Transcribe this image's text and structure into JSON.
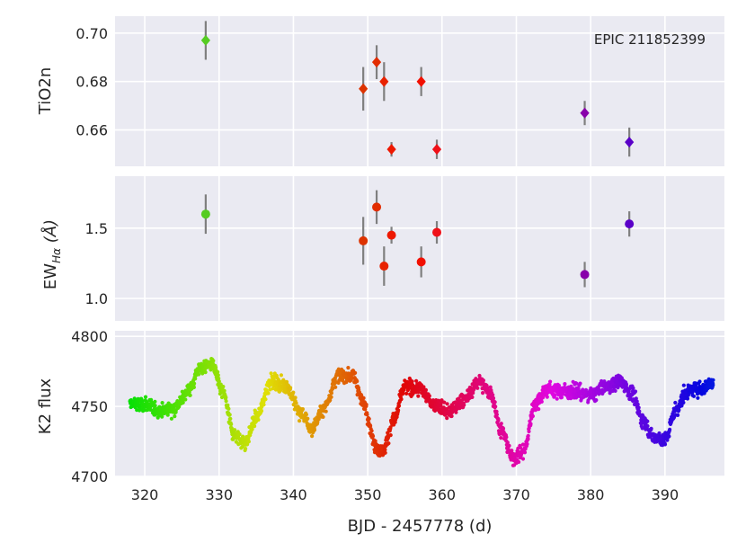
{
  "chart_data": [
    {
      "type": "scatter",
      "ylabel": "TiO2n",
      "annotation": "EPIC 211852399",
      "xlim": [
        316,
        398
      ],
      "ylim": [
        0.645,
        0.707
      ],
      "yticks": [
        "0.66",
        "0.68",
        "0.70"
      ],
      "marker": "diamond",
      "points": [
        {
          "x": 328.2,
          "y": 0.697,
          "err": 0.008,
          "color": "#55cc22"
        },
        {
          "x": 349.4,
          "y": 0.677,
          "err": 0.009,
          "color": "#dd3300"
        },
        {
          "x": 351.2,
          "y": 0.688,
          "err": 0.007,
          "color": "#e22c00"
        },
        {
          "x": 352.2,
          "y": 0.68,
          "err": 0.008,
          "color": "#e82200"
        },
        {
          "x": 353.2,
          "y": 0.652,
          "err": 0.003,
          "color": "#ee1800"
        },
        {
          "x": 357.2,
          "y": 0.68,
          "err": 0.006,
          "color": "#f21000"
        },
        {
          "x": 359.3,
          "y": 0.652,
          "err": 0.004,
          "color": "#f01018"
        },
        {
          "x": 379.2,
          "y": 0.667,
          "err": 0.005,
          "color": "#8800aa"
        },
        {
          "x": 385.2,
          "y": 0.655,
          "err": 0.006,
          "color": "#5a00c8"
        }
      ]
    },
    {
      "type": "scatter",
      "ylabel": "EW",
      "ylabel_sub": "Hα",
      "ylabel_unit": " (Å)",
      "xlim": [
        316,
        398
      ],
      "ylim": [
        0.84,
        1.87
      ],
      "yticks": [
        "1.0",
        "1.5"
      ],
      "marker": "circle",
      "points": [
        {
          "x": 328.2,
          "y": 1.6,
          "err": 0.14,
          "color": "#55cc22"
        },
        {
          "x": 349.4,
          "y": 1.41,
          "err": 0.17,
          "color": "#dd3300"
        },
        {
          "x": 351.2,
          "y": 1.65,
          "err": 0.12,
          "color": "#e22c00"
        },
        {
          "x": 352.2,
          "y": 1.23,
          "err": 0.14,
          "color": "#e82200"
        },
        {
          "x": 353.2,
          "y": 1.45,
          "err": 0.06,
          "color": "#ee1800"
        },
        {
          "x": 357.2,
          "y": 1.26,
          "err": 0.11,
          "color": "#f21000"
        },
        {
          "x": 359.3,
          "y": 1.47,
          "err": 0.08,
          "color": "#f01018"
        },
        {
          "x": 379.2,
          "y": 1.17,
          "err": 0.09,
          "color": "#8800aa"
        },
        {
          "x": 385.2,
          "y": 1.53,
          "err": 0.09,
          "color": "#5a00c8"
        }
      ]
    },
    {
      "type": "scatter",
      "ylabel": "K2 flux",
      "xlabel": "BJD - 2457778 (d)",
      "xlim": [
        316,
        398
      ],
      "ylim": [
        4700,
        4804
      ],
      "yticks": [
        "4700",
        "4750",
        "4800"
      ],
      "xticks": [
        "320",
        "330",
        "340",
        "350",
        "360",
        "370",
        "380",
        "390"
      ],
      "marker": "dot",
      "x_range": [
        318,
        396.5
      ],
      "colormap": "hue: green (318) → red (~355) → purple/blue (396)",
      "light_curve_nodes": [
        [
          318,
          4752
        ],
        [
          320,
          4751
        ],
        [
          322,
          4747
        ],
        [
          324,
          4749
        ],
        [
          326,
          4762
        ],
        [
          327.5,
          4778
        ],
        [
          329,
          4780
        ],
        [
          330.5,
          4760
        ],
        [
          332,
          4730
        ],
        [
          333.5,
          4724
        ],
        [
          335,
          4742
        ],
        [
          337,
          4768
        ],
        [
          339,
          4765
        ],
        [
          341,
          4745
        ],
        [
          342.5,
          4734
        ],
        [
          344,
          4748
        ],
        [
          346,
          4772
        ],
        [
          348,
          4772
        ],
        [
          349.5,
          4752
        ],
        [
          351,
          4722
        ],
        [
          352,
          4718
        ],
        [
          353.5,
          4740
        ],
        [
          355,
          4764
        ],
        [
          357,
          4763
        ],
        [
          359,
          4751
        ],
        [
          361,
          4746
        ],
        [
          363,
          4755
        ],
        [
          365,
          4768
        ],
        [
          366.5,
          4760
        ],
        [
          368,
          4733
        ],
        [
          369.5,
          4713
        ],
        [
          371,
          4718
        ],
        [
          372.5,
          4752
        ],
        [
          374,
          4762
        ],
        [
          378,
          4761
        ],
        [
          380,
          4758
        ],
        [
          382,
          4764
        ],
        [
          384,
          4768
        ],
        [
          385.5,
          4760
        ],
        [
          387,
          4740
        ],
        [
          388.5,
          4728
        ],
        [
          390,
          4726
        ],
        [
          391.5,
          4748
        ],
        [
          393,
          4761
        ],
        [
          395,
          4763
        ],
        [
          396.5,
          4767
        ]
      ]
    }
  ]
}
